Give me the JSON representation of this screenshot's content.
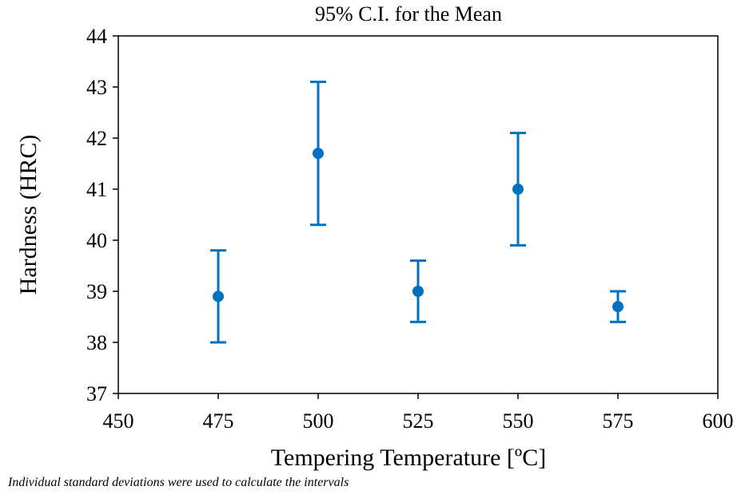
{
  "chart_data": {
    "type": "scatter",
    "title": "95% C.I. for the Mean",
    "xlabel": "Tempering Temperature [ºC]",
    "ylabel": "Hardness (HRC)",
    "xlim": [
      450,
      600
    ],
    "ylim": [
      37,
      44
    ],
    "xticks": [
      450,
      475,
      500,
      525,
      550,
      575,
      600
    ],
    "yticks": [
      37,
      38,
      39,
      40,
      41,
      42,
      43,
      44
    ],
    "grid": false,
    "color": "#0070C0",
    "points": [
      {
        "x": 475,
        "y": 38.9,
        "lower": 38.0,
        "upper": 39.8
      },
      {
        "x": 500,
        "y": 41.7,
        "lower": 40.3,
        "upper": 43.1
      },
      {
        "x": 525,
        "y": 39.0,
        "lower": 38.4,
        "upper": 39.6
      },
      {
        "x": 550,
        "y": 41.0,
        "lower": 39.9,
        "upper": 42.1
      },
      {
        "x": 575,
        "y": 38.7,
        "lower": 38.4,
        "upper": 39.0
      }
    ]
  },
  "footnote": "Individual standard deviations were used to calculate the intervals"
}
